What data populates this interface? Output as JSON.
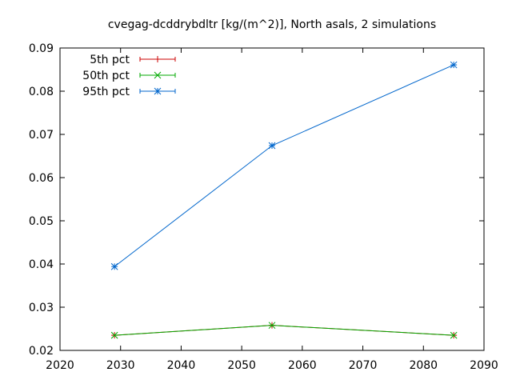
{
  "chart_data": {
    "type": "line",
    "title": "cvegag-dcddrybdltr [kg/(m^2)], North asals, 2 simulations",
    "xlabel": "",
    "ylabel": "",
    "xlim": [
      2020,
      2090
    ],
    "ylim": [
      0.02,
      0.09
    ],
    "xticks": [
      2020,
      2030,
      2040,
      2050,
      2060,
      2070,
      2080,
      2090
    ],
    "yticks": [
      0.02,
      0.03,
      0.04,
      0.05,
      0.06,
      0.07,
      0.08,
      0.09
    ],
    "ytick_labels": [
      "0.02",
      "0.03",
      "0.04",
      "0.05",
      "0.06",
      "0.07",
      "0.08",
      "0.09"
    ],
    "grid": false,
    "legend_position": "top-left",
    "x": [
      2029,
      2055,
      2085
    ],
    "series": [
      {
        "name": "5th pct",
        "color": "#cc0000",
        "marker": "plus",
        "values": [
          0.0235,
          0.0258,
          0.0235
        ]
      },
      {
        "name": "50th pct",
        "color": "#00aa00",
        "marker": "cross",
        "values": [
          0.0235,
          0.0258,
          0.0235
        ]
      },
      {
        "name": "95th pct",
        "color": "#0066cc",
        "marker": "star",
        "values": [
          0.0394,
          0.0674,
          0.0861
        ]
      }
    ]
  }
}
